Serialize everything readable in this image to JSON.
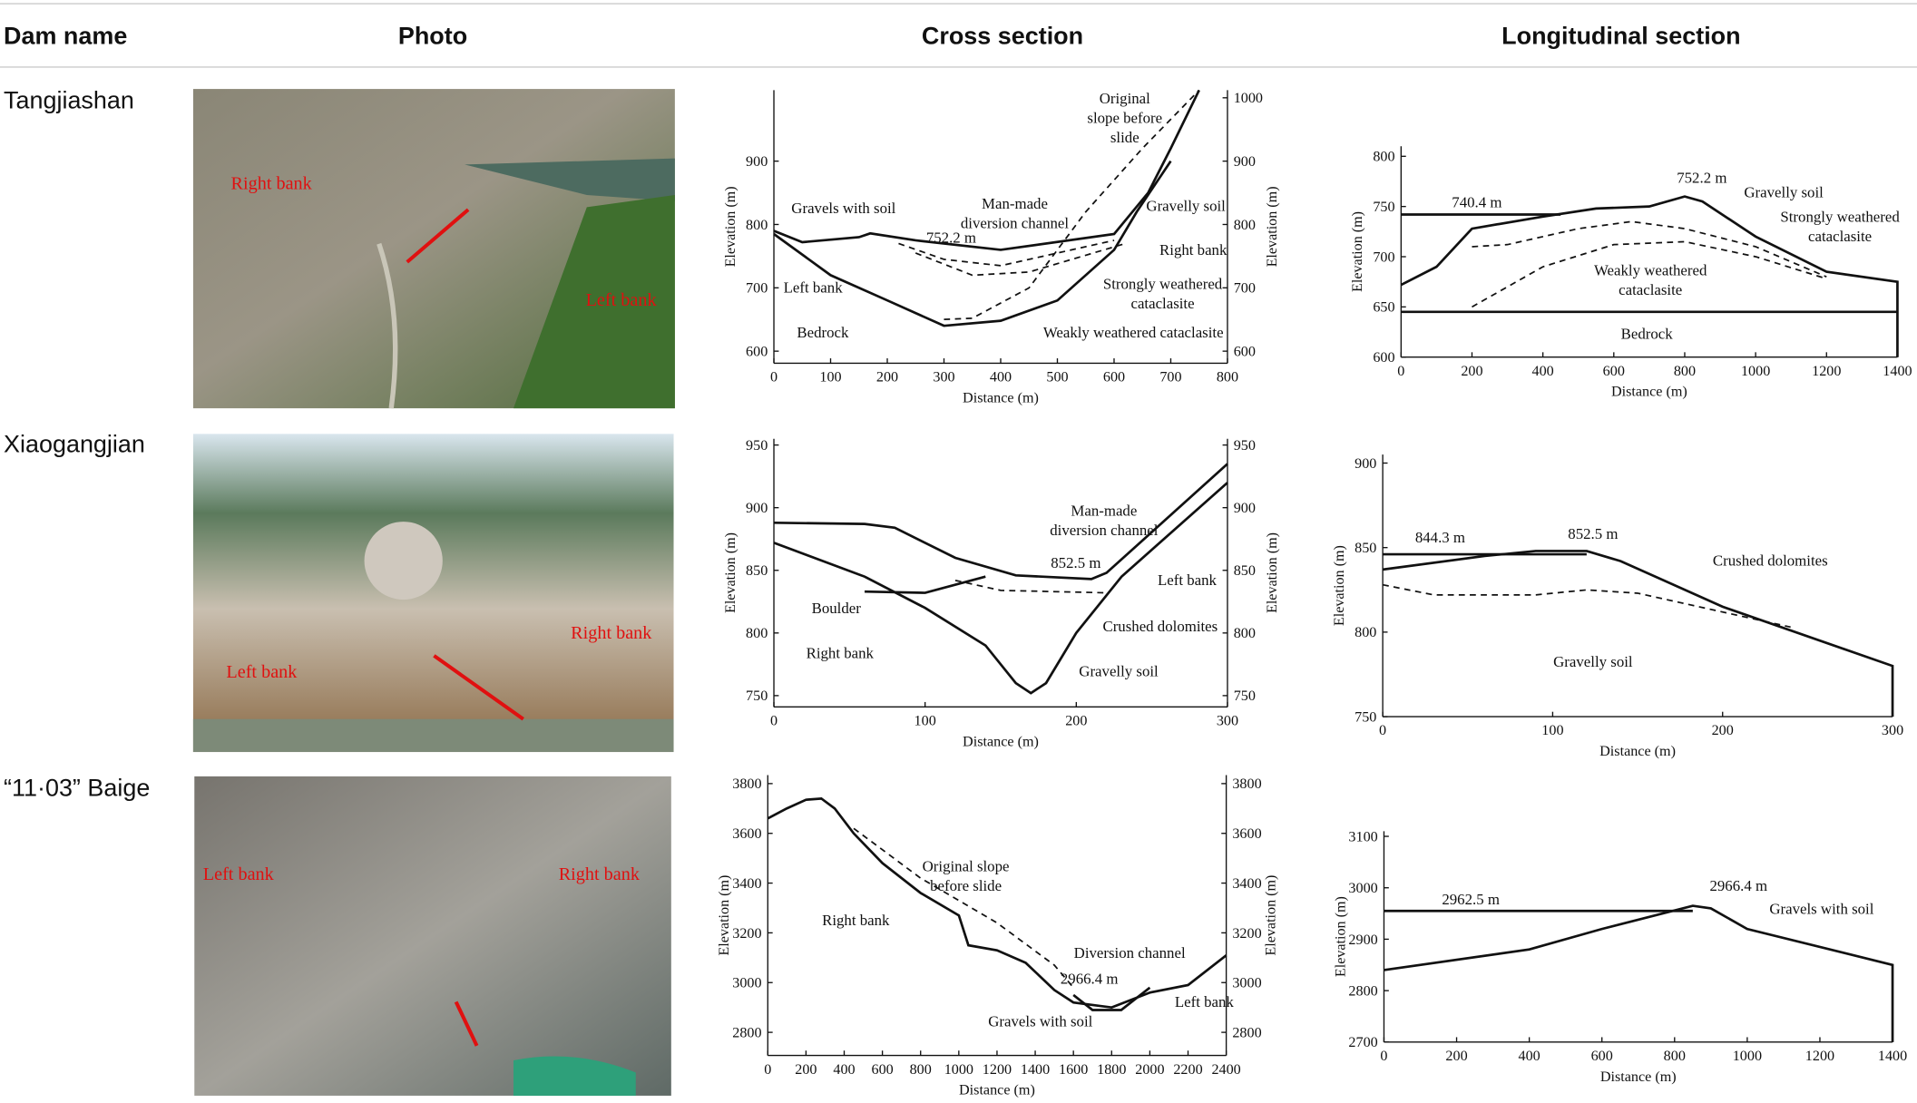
{
  "header": [
    "Dam name",
    "Photo",
    "Cross section",
    "Longitudinal section"
  ],
  "rows": [
    {
      "name": "Tangjiashan",
      "photo_labels": [
        "Right bank",
        "Left bank"
      ],
      "cross_section": {
        "xlim": [
          0,
          800
        ],
        "xticks": [
          0,
          100,
          200,
          300,
          400,
          500,
          600,
          700,
          800
        ],
        "ylim": [
          581,
          1012
        ],
        "yticks": [
          600,
          700,
          800,
          900
        ],
        "y2ticks": [
          600,
          700,
          800,
          900,
          1000
        ],
        "xlabel": "Distance (m)",
        "ylabel": "Elevation (m)",
        "y2label": "Elevation (m)",
        "lines": [
          {
            "dash": false,
            "x": [
              0,
              50,
              150,
              170,
              250,
              400,
              600,
              660,
              700,
              750
            ],
            "y": [
              790,
              772,
              780,
              786,
              775,
              760,
              785,
              850,
              920,
              1012
            ]
          },
          {
            "dash": false,
            "x": [
              0,
              100,
              200,
              300,
              400,
              500,
              600,
              640,
              700
            ],
            "y": [
              785,
              720,
              680,
              640,
              648,
              680,
              760,
              820,
              900
            ]
          },
          {
            "dash": true,
            "x": [
              300,
              350,
              450,
              550,
              650,
              750
            ],
            "y": [
              650,
              652,
              700,
              820,
              920,
              1012
            ]
          },
          {
            "dash": true,
            "x": [
              220,
              300,
              400,
              600
            ],
            "y": [
              770,
              745,
              735,
              775
            ]
          },
          {
            "dash": true,
            "x": [
              250,
              350,
              450,
              620
            ],
            "y": [
              755,
              720,
              725,
              770
            ]
          }
        ],
        "annotations": [
          [
            "Original",
            "slope before",
            "slide"
          ],
          [
            "Gravels with soil"
          ],
          [
            "Man-made",
            "diversion channel"
          ],
          [
            "752.2 m"
          ],
          [
            "Gravelly soil"
          ],
          [
            "Right bank"
          ],
          [
            "Strongly weathered",
            "cataclasite"
          ],
          [
            "Left bank"
          ],
          [
            "Bedrock"
          ],
          [
            "Weakly weathered cataclasite"
          ]
        ]
      },
      "longitudinal_section": {
        "xlim": [
          0,
          1400
        ],
        "xticks": [
          0,
          200,
          400,
          600,
          800,
          1000,
          1200,
          1400
        ],
        "ylim": [
          600,
          810
        ],
        "yticks": [
          600,
          650,
          700,
          750,
          800
        ],
        "xlabel": "Distance (m)",
        "ylabel": "Elevation (m)",
        "lines": [
          {
            "dash": false,
            "x": [
              0,
              100,
              200,
              400,
              550,
              700,
              800,
              850,
              1000,
              1200,
              1400,
              1400
            ],
            "y": [
              672,
              690,
              728,
              740,
              748,
              750,
              760,
              755,
              720,
              685,
              675,
              600
            ]
          },
          {
            "dash": true,
            "x": [
              200,
              300,
              500,
              650,
              800,
              1000,
              1200
            ],
            "y": [
              710,
              712,
              728,
              735,
              728,
              710,
              680
            ]
          },
          {
            "dash": true,
            "x": [
              200,
              400,
              600,
              800,
              1000,
              1200
            ],
            "y": [
              650,
              690,
              712,
              715,
              700,
              678
            ]
          },
          {
            "dash": false,
            "x": [
              0,
              1400
            ],
            "y": [
              645,
              645
            ]
          },
          {
            "dash": false,
            "x": [
              0,
              450
            ],
            "y": [
              742,
              742
            ]
          }
        ],
        "annotations": [
          [
            "740.4 m"
          ],
          [
            "752.2 m"
          ],
          [
            "Gravelly soil"
          ],
          [
            "Strongly weathered",
            "cataclasite"
          ],
          [
            "Weakly weathered",
            "cataclasite"
          ],
          [
            "Bedrock"
          ]
        ]
      }
    },
    {
      "name": "Xiaogangjian",
      "photo_labels": [
        "Right bank",
        "Left bank"
      ],
      "cross_section": {
        "xlim": [
          0,
          300
        ],
        "xticks": [
          0,
          100,
          200,
          300
        ],
        "ylim": [
          741,
          955
        ],
        "yticks": [
          750,
          800,
          850,
          900,
          950
        ],
        "y2ticks": [
          750,
          800,
          850,
          900,
          950
        ],
        "xlabel": "Distance (m)",
        "ylabel": "Elevation (m)",
        "y2label": "Elevation (m)",
        "lines": [
          {
            "dash": false,
            "x": [
              0,
              60,
              80,
              120,
              160,
              210,
              220,
              300
            ],
            "y": [
              888,
              887,
              884,
              860,
              846,
              843,
              848,
              935
            ]
          },
          {
            "dash": false,
            "x": [
              0,
              60,
              100,
              140,
              160,
              170,
              180,
              200,
              230,
              300
            ],
            "y": [
              872,
              845,
              820,
              790,
              760,
              752,
              760,
              800,
              845,
              920
            ]
          },
          {
            "dash": false,
            "x": [
              60,
              100,
              140
            ],
            "y": [
              833,
              832,
              845
            ]
          },
          {
            "dash": true,
            "x": [
              120,
              150,
              220
            ],
            "y": [
              842,
              834,
              832
            ]
          }
        ],
        "annotations": [
          [
            "Man-made",
            "diversion channel"
          ],
          [
            "852.5 m"
          ],
          [
            "Left bank"
          ],
          [
            "Boulder"
          ],
          [
            "Crushed dolomites"
          ],
          [
            "Right bank"
          ],
          [
            "Gravelly soil"
          ]
        ]
      },
      "longitudinal_section": {
        "xlim": [
          0,
          300
        ],
        "xticks": [
          0,
          100,
          200,
          300
        ],
        "ylim": [
          750,
          905
        ],
        "yticks": [
          750,
          800,
          850,
          900
        ],
        "xlabel": "Distance (m)",
        "ylabel": "Elevation (m)",
        "lines": [
          {
            "dash": false,
            "x": [
              0,
              60,
              90,
              120,
              140,
              200,
              300,
              300
            ],
            "y": [
              837,
              845,
              848,
              848,
              842,
              815,
              780,
              750
            ]
          },
          {
            "dash": true,
            "x": [
              0,
              30,
              90,
              120,
              150,
              240
            ],
            "y": [
              828,
              822,
              822,
              825,
              823,
              803
            ]
          },
          {
            "dash": false,
            "x": [
              0,
              120
            ],
            "y": [
              846,
              846
            ]
          }
        ],
        "annotations": [
          [
            "844.3 m"
          ],
          [
            "852.5 m"
          ],
          [
            "Crushed dolomites"
          ],
          [
            "Gravelly soil"
          ]
        ]
      }
    },
    {
      "name": "“11·03” Baige",
      "photo_labels": [
        "Left bank",
        "Right bank"
      ],
      "cross_section": {
        "xlim": [
          0,
          2400
        ],
        "xticks": [
          0,
          200,
          400,
          600,
          800,
          1000,
          1200,
          1400,
          1600,
          1800,
          2000,
          2200,
          2400
        ],
        "ylim": [
          2707,
          3834
        ],
        "yticks": [
          2800,
          3000,
          3200,
          3400,
          3600,
          3800
        ],
        "y2ticks": [
          2800,
          3000,
          3200,
          3400,
          3600,
          3800
        ],
        "xlabel": "Distance (m)",
        "ylabel": "Elevation (m)",
        "y2label": "Elevation (m)",
        "lines": [
          {
            "dash": false,
            "x": [
              0,
              100,
              200,
              280,
              350,
              450,
              600,
              800,
              1000,
              1050,
              1200,
              1350,
              1500,
              1600,
              1800,
              2000,
              2200,
              2400
            ],
            "y": [
              3660,
              3700,
              3735,
              3740,
              3700,
              3600,
              3480,
              3360,
              3270,
              3150,
              3130,
              3080,
              2970,
              2920,
              2900,
              2960,
              2990,
              3110
            ]
          },
          {
            "dash": true,
            "x": [
              450,
              800,
              1200,
              1500,
              1600
            ],
            "y": [
              3620,
              3420,
              3240,
              3070,
              2980
            ]
          },
          {
            "dash": false,
            "x": [
              1600,
              1700,
              1850,
              2000
            ],
            "y": [
              2950,
              2890,
              2890,
              2980
            ]
          }
        ],
        "annotations": [
          [
            "Original slope",
            "before slide"
          ],
          [
            "Right bank"
          ],
          [
            "Diversion channel"
          ],
          [
            "2966.4 m"
          ],
          [
            "Left bank"
          ],
          [
            "Gravels with soil"
          ]
        ]
      },
      "longitudinal_section": {
        "xlim": [
          0,
          1400
        ],
        "xticks": [
          0,
          200,
          400,
          600,
          800,
          1000,
          1200,
          1400
        ],
        "ylim": [
          2700,
          3110
        ],
        "yticks": [
          2700,
          2800,
          2900,
          3000,
          3100
        ],
        "xlabel": "Distance (m)",
        "ylabel": "Elevation (m)",
        "lines": [
          {
            "dash": false,
            "x": [
              0,
              400,
              600,
              850,
              900,
              1000,
              1400,
              1400
            ],
            "y": [
              2840,
              2880,
              2920,
              2965,
              2960,
              2920,
              2850,
              2700
            ]
          },
          {
            "dash": false,
            "x": [
              0,
              850
            ],
            "y": [
              2955,
              2955
            ]
          }
        ],
        "annotations": [
          [
            "2962.5 m"
          ],
          [
            "2966.4 m"
          ],
          [
            "Gravels with soil"
          ]
        ]
      }
    }
  ]
}
